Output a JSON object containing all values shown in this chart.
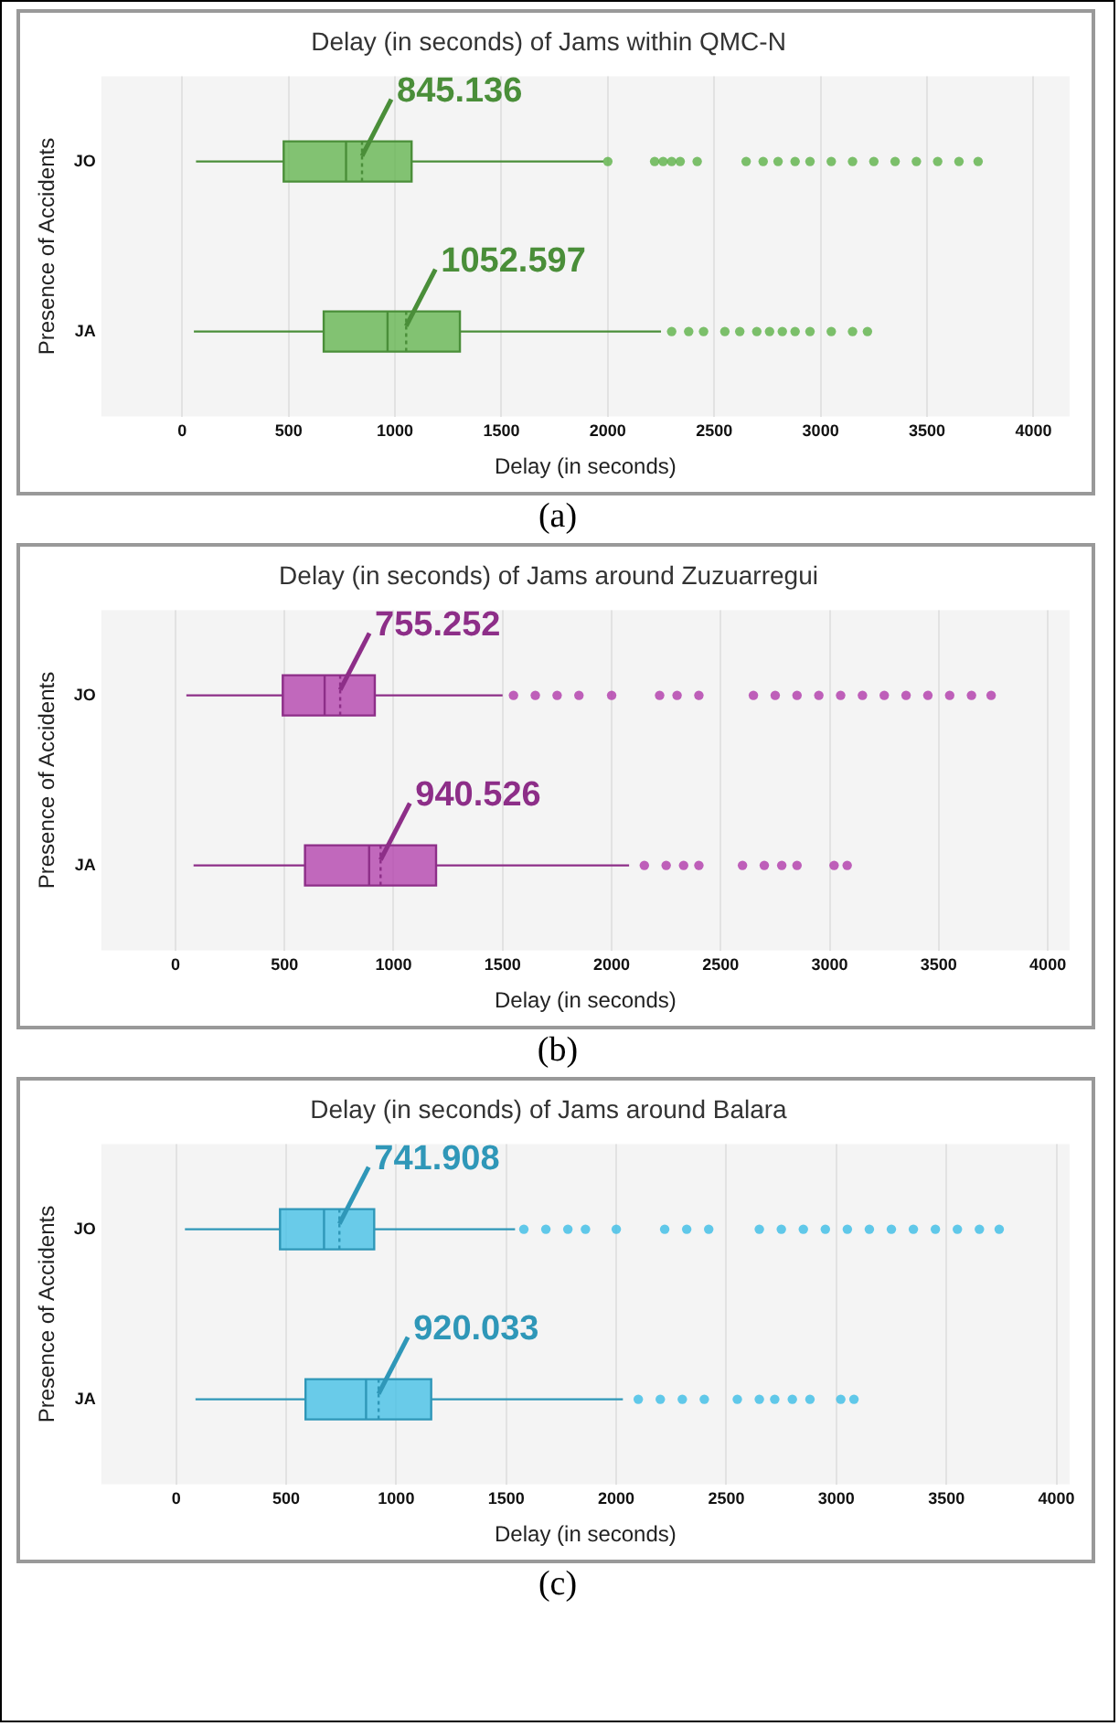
{
  "chart_data": [
    {
      "type": "box",
      "orientation": "horizontal",
      "title": "Delay (in seconds) of Jams within QMC-N",
      "xlabel": "Delay (in seconds)",
      "ylabel": "Presence of Accidents",
      "categories": [
        "JO",
        "JA"
      ],
      "xlim": [
        -380,
        4170
      ],
      "xticks": [
        0,
        500,
        1000,
        1500,
        2000,
        2500,
        3000,
        3500,
        4000
      ],
      "grid": "x",
      "legend": false,
      "series": [
        {
          "color": "#5cb247",
          "boxes": [
            {
              "low": 65,
              "q1": 477,
              "median": 770,
              "q3": 1078,
              "high": 1980,
              "mean": 845.136,
              "outliers": [
                2000,
                2220,
                2260,
                2300,
                2340,
                2420,
                2650,
                2730,
                2800,
                2880,
                2950,
                3050,
                3150,
                3250,
                3350,
                3450,
                3550,
                3650,
                3740
              ]
            },
            {
              "low": 55,
              "q1": 665,
              "median": 965,
              "q3": 1305,
              "high": 2250,
              "mean": 1052.597,
              "outliers": [
                2300,
                2380,
                2450,
                2550,
                2620,
                2700,
                2760,
                2820,
                2880,
                2950,
                3050,
                3150,
                3220
              ]
            }
          ]
        }
      ],
      "annotations": [
        {
          "text": "845.136",
          "x": 845.136,
          "y": "JO"
        },
        {
          "text": "1052.597",
          "x": 1052.597,
          "y": "JA"
        },
        "(a)"
      ]
    },
    {
      "type": "box",
      "orientation": "horizontal",
      "title": "Delay (in seconds) of Jams around Zuzuarregui",
      "xlabel": "Delay (in seconds)",
      "ylabel": "Presence of Accidents",
      "categories": [
        "JO",
        "JA"
      ],
      "xlim": [
        -340,
        4100
      ],
      "xticks": [
        0,
        500,
        1000,
        1500,
        2000,
        2500,
        3000,
        3500,
        4000
      ],
      "grid": "x",
      "legend": false,
      "series": [
        {
          "color": "#b03aaa",
          "boxes": [
            {
              "low": 50,
              "q1": 492,
              "median": 684,
              "q3": 914,
              "high": 1500,
              "mean": 755.252,
              "outliers": [
                1550,
                1650,
                1750,
                1850,
                2000,
                2220,
                2300,
                2400,
                2650,
                2750,
                2850,
                2950,
                3050,
                3150,
                3250,
                3350,
                3450,
                3550,
                3650,
                3740
              ]
            },
            {
              "low": 83,
              "q1": 594,
              "median": 888,
              "q3": 1195,
              "high": 2080,
              "mean": 940.526,
              "outliers": [
                2150,
                2250,
                2330,
                2400,
                2600,
                2700,
                2780,
                2850,
                3020,
                3080
              ]
            }
          ]
        }
      ],
      "annotations": [
        {
          "text": "755.252",
          "x": 755.252,
          "y": "JO"
        },
        {
          "text": "940.526",
          "x": 940.526,
          "y": "JA"
        },
        "(b)"
      ]
    },
    {
      "type": "box",
      "orientation": "horizontal",
      "title": "Delay (in seconds) of Jams around Balara",
      "xlabel": "Delay (in seconds)",
      "ylabel": "Presence of Accidents",
      "categories": [
        "JO",
        "JA"
      ],
      "xlim": [
        -340,
        4060
      ],
      "xticks": [
        0,
        500,
        1000,
        1500,
        2000,
        2500,
        3000,
        3500,
        4000
      ],
      "grid": "x",
      "legend": false,
      "series": [
        {
          "color": "#3bbde6",
          "boxes": [
            {
              "low": 40,
              "q1": 472,
              "median": 672,
              "q3": 900,
              "high": 1540,
              "mean": 741.908,
              "outliers": [
                1580,
                1680,
                1780,
                1860,
                2000,
                2220,
                2320,
                2420,
                2650,
                2750,
                2850,
                2950,
                3050,
                3150,
                3250,
                3350,
                3450,
                3550,
                3650,
                3740
              ]
            },
            {
              "low": 88,
              "q1": 588,
              "median": 863,
              "q3": 1159,
              "high": 2030,
              "mean": 920.033,
              "outliers": [
                2100,
                2200,
                2300,
                2400,
                2550,
                2650,
                2720,
                2800,
                2880,
                3020,
                3080
              ]
            }
          ]
        }
      ],
      "annotations": [
        {
          "text": "741.908",
          "x": 741.908,
          "y": "JO"
        },
        {
          "text": "920.033",
          "x": 920.033,
          "y": "JA"
        },
        "(c)"
      ]
    }
  ]
}
